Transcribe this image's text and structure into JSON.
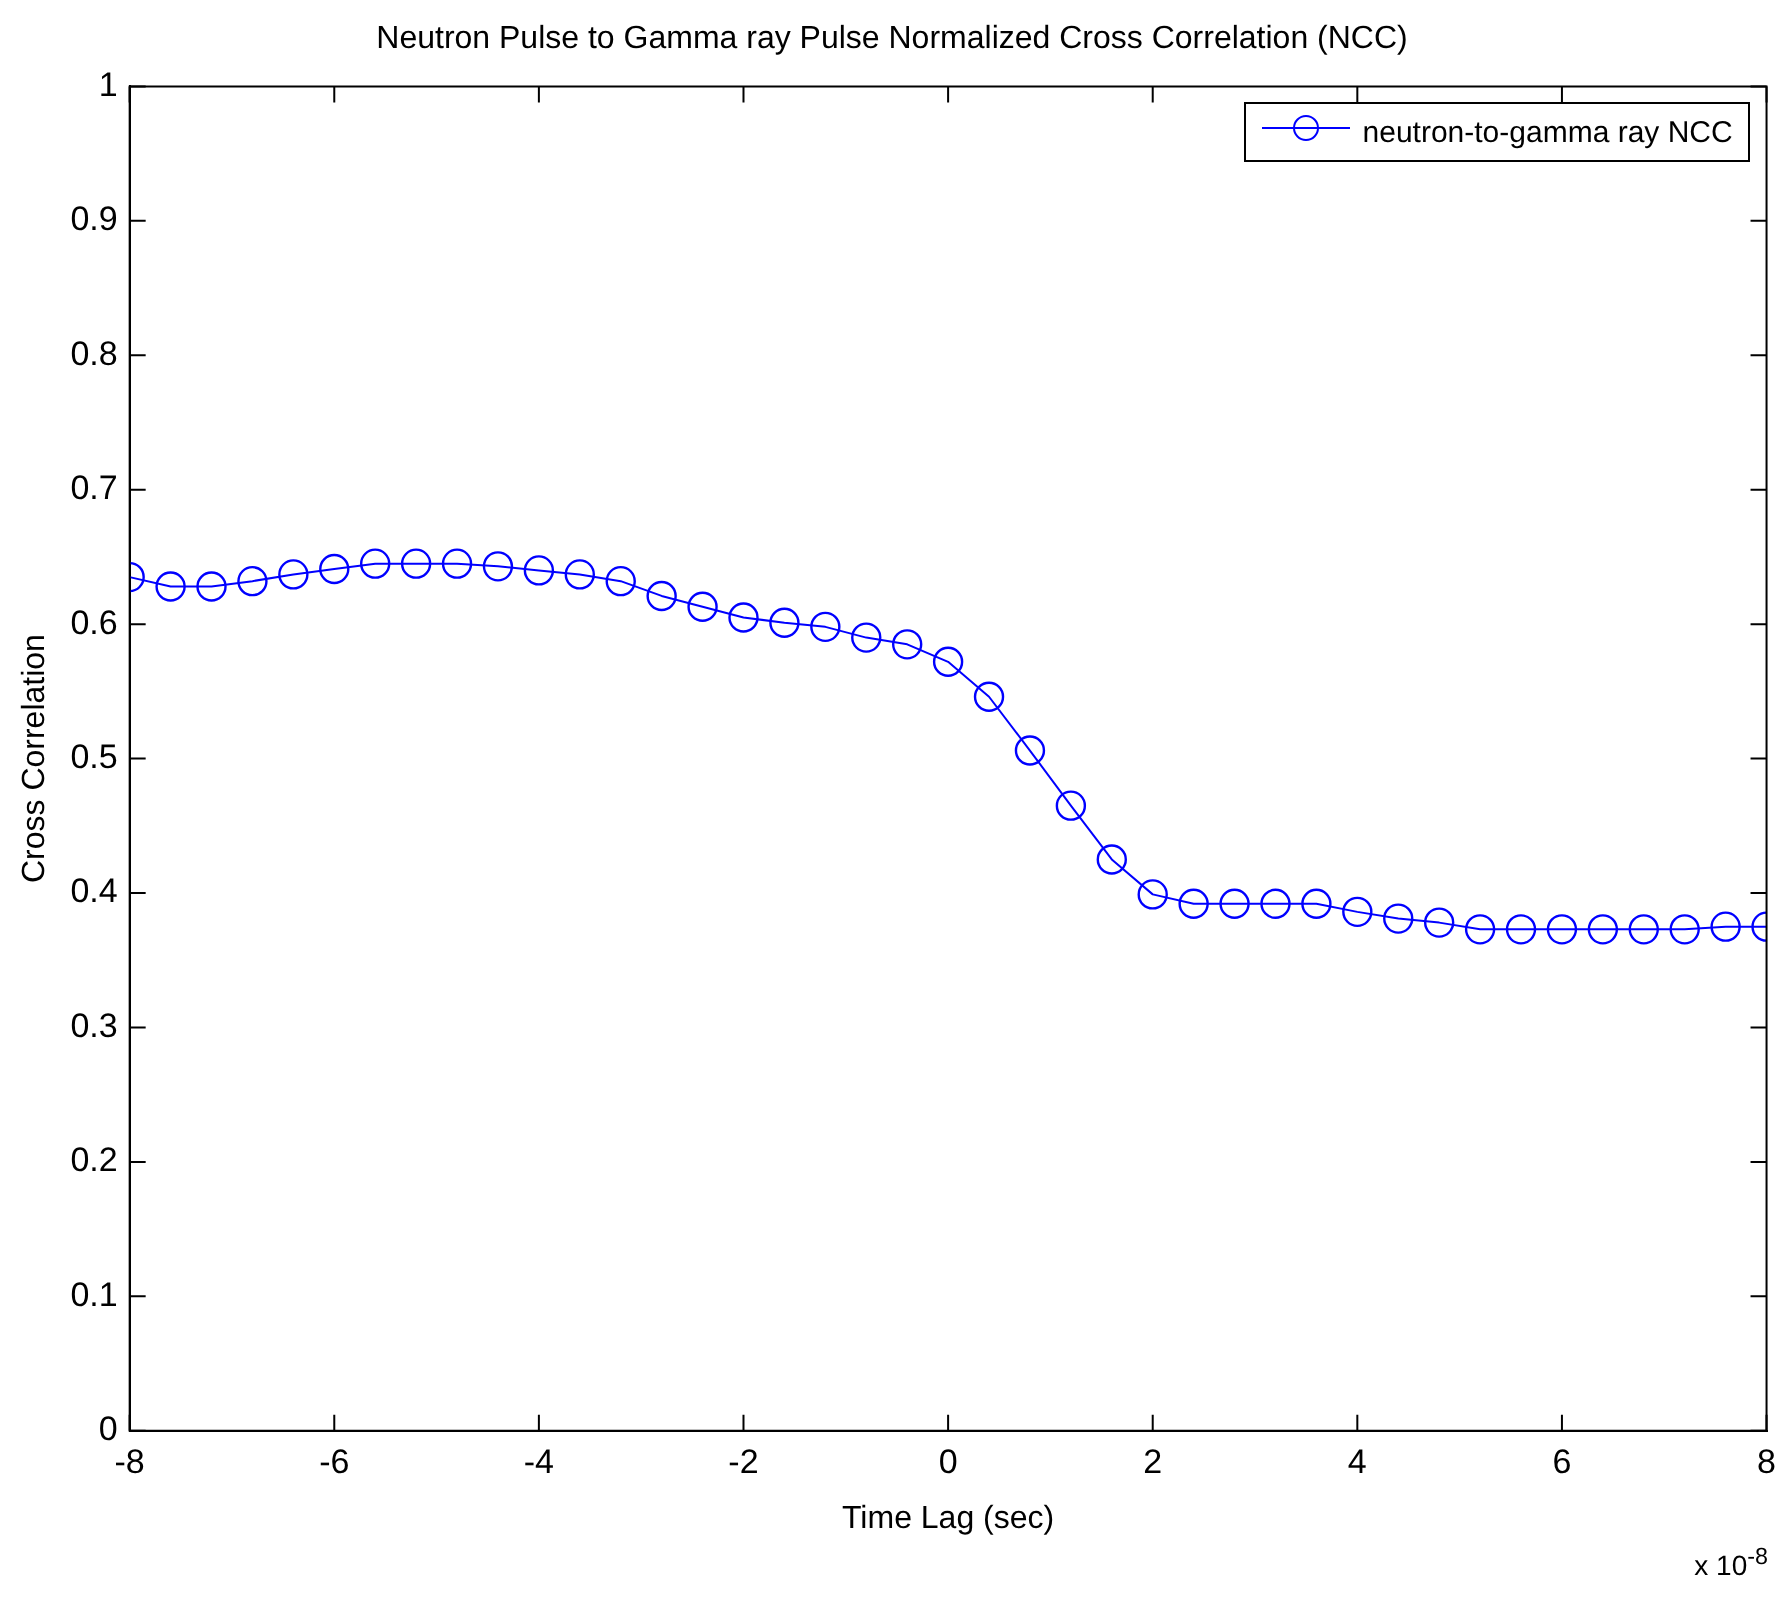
{
  "chart_data": {
    "type": "line",
    "title": "Neutron Pulse to Gamma ray Pulse Normalized Cross Correlation (NCC)",
    "xlabel": "Time Lag (sec)",
    "ylabel": "Cross Correlation",
    "annotations": [
      "x 10$^{-8}$"
    ],
    "x": [
      -8,
      -7.6,
      -7.2,
      -6.8,
      -6.4,
      -6,
      -5.6,
      -5.2,
      -4.8,
      -4.4,
      -4,
      -3.6,
      -3.2,
      -2.8,
      -2.4,
      -2,
      -1.6,
      -1.2,
      -0.8,
      -0.4,
      0,
      0.4,
      0.8,
      1.2,
      1.6,
      2,
      2.4,
      2.8,
      3.2,
      3.6,
      4,
      4.4,
      4.8,
      5.2,
      5.6,
      6,
      6.4,
      6.8,
      7.2,
      7.6,
      8
    ],
    "series": [
      {
        "name": "neutron-to-gamma ray NCC",
        "color": "#0000ff",
        "values": [
          0.635,
          0.628,
          0.628,
          0.632,
          0.637,
          0.641,
          0.645,
          0.645,
          0.645,
          0.643,
          0.64,
          0.637,
          0.632,
          0.621,
          0.613,
          0.605,
          0.601,
          0.598,
          0.59,
          0.585,
          0.572,
          0.546,
          0.506,
          0.465,
          0.425,
          0.399,
          0.392,
          0.392,
          0.392,
          0.392,
          0.386,
          0.381,
          0.378,
          0.373,
          0.373,
          0.373,
          0.373,
          0.373,
          0.373,
          0.375,
          0.375
        ]
      }
    ],
    "xlim": [
      -8,
      8
    ],
    "xticks": [
      -8,
      -6,
      -4,
      -2,
      0,
      2,
      4,
      6,
      8
    ],
    "ylim": [
      0,
      1
    ],
    "yticks": [
      0,
      0.1,
      0.2,
      0.3,
      0.4,
      0.5,
      0.6,
      0.7,
      0.8,
      0.9,
      1
    ],
    "grid": false,
    "legend": "top right",
    "marker": "circle",
    "line_style": "solid"
  }
}
